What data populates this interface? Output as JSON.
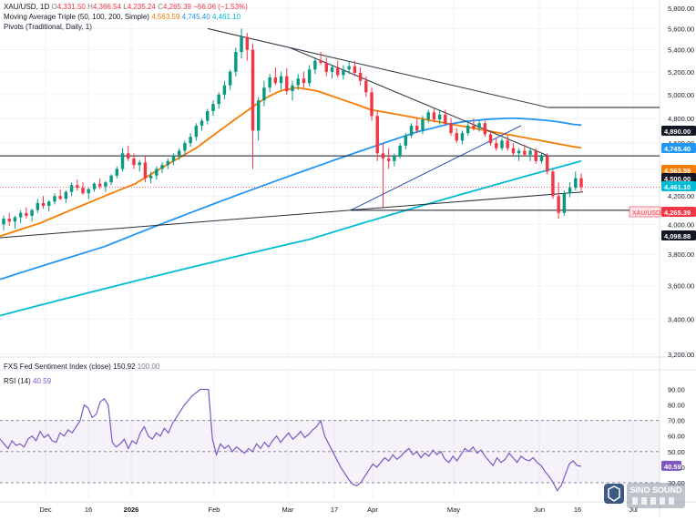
{
  "header": {
    "symbol": "XAU/USD, 1D",
    "ohlc": {
      "o_label": "O",
      "o": "4,331.50",
      "h_label": "H",
      "h": "4,366.54",
      "l_label": "L",
      "l": "4,235.24",
      "c_label": "C",
      "c": "4,265.39",
      "chg": "−66.06 (−1.53%)"
    },
    "ma_label": "Moving Average Triple (50, 100, 200, Simple)",
    "ma_values": [
      "4,563.59",
      "4,745.40",
      "4,461.10"
    ],
    "pivots_label": "Pivots (Traditional, Daily, 1)"
  },
  "sentiment_label": "FXS Fed Sentiment Index (close)",
  "sentiment_values": [
    "150.92",
    "100.00"
  ],
  "rsi_header": {
    "label": "RSI (14)",
    "value": "40.59"
  },
  "colors": {
    "up": "#089981",
    "down": "#f23645",
    "ma50": "#f57c00",
    "ma100": "#2196f3",
    "ma200": "#00bcd4",
    "rsi": "#7e57c2",
    "price_tag": "#f23645",
    "level_tag": "#131722"
  },
  "watermark": {
    "name": "SINO SOUND"
  },
  "chart_data": [
    {
      "type": "candlestick",
      "title": "XAU/USD, 1D",
      "ylim": [
        3200,
        5800
      ],
      "y_scale": "log",
      "yticks": [
        3200,
        3400,
        3600,
        3800,
        4000,
        4200,
        4400,
        4600,
        4800,
        5000,
        5200,
        5400,
        5600,
        5800
      ],
      "ytick_labels": [
        "3,200.00",
        "3,400.00",
        "3,600.00",
        "3,800.00",
        "4,000.00",
        "4,200.00",
        "4,400.00",
        "4,600.00",
        "4,800.00",
        "5,000.00",
        "5,200.00",
        "5,400.00",
        "5,600.00",
        "5,800.00"
      ],
      "xtick_labels": [
        "Dec",
        "16",
        "2026",
        "Feb",
        "Mar",
        "17",
        "Apr",
        "May",
        "Jun",
        "16",
        "Jul"
      ],
      "grid": true,
      "ohlc": [
        [
          4000,
          4060,
          3960,
          4040
        ],
        [
          4040,
          4080,
          3990,
          4020
        ],
        [
          4020,
          4060,
          3970,
          4050
        ],
        [
          4050,
          4100,
          4010,
          4080
        ],
        [
          4080,
          4120,
          4040,
          4060
        ],
        [
          4060,
          4110,
          4020,
          4100
        ],
        [
          4100,
          4180,
          4080,
          4150
        ],
        [
          4150,
          4200,
          4110,
          4130
        ],
        [
          4130,
          4170,
          4090,
          4160
        ],
        [
          4160,
          4220,
          4140,
          4200
        ],
        [
          4200,
          4250,
          4170,
          4180
        ],
        [
          4180,
          4240,
          4150,
          4230
        ],
        [
          4230,
          4300,
          4200,
          4280
        ],
        [
          4280,
          4320,
          4240,
          4260
        ],
        [
          4260,
          4300,
          4210,
          4220
        ],
        [
          4220,
          4260,
          4180,
          4250
        ],
        [
          4250,
          4300,
          4230,
          4290
        ],
        [
          4290,
          4330,
          4250,
          4270
        ],
        [
          4270,
          4310,
          4230,
          4300
        ],
        [
          4300,
          4360,
          4280,
          4350
        ],
        [
          4350,
          4420,
          4330,
          4400
        ],
        [
          4400,
          4560,
          4380,
          4520
        ],
        [
          4520,
          4580,
          4460,
          4480
        ],
        [
          4480,
          4520,
          4400,
          4430
        ],
        [
          4430,
          4470,
          4380,
          4450
        ],
        [
          4450,
          4500,
          4300,
          4330
        ],
        [
          4330,
          4380,
          4290,
          4350
        ],
        [
          4350,
          4420,
          4320,
          4400
        ],
        [
          4400,
          4450,
          4370,
          4430
        ],
        [
          4430,
          4480,
          4400,
          4460
        ],
        [
          4460,
          4520,
          4430,
          4500
        ],
        [
          4500,
          4560,
          4470,
          4540
        ],
        [
          4540,
          4620,
          4510,
          4600
        ],
        [
          4600,
          4680,
          4570,
          4650
        ],
        [
          4650,
          4760,
          4620,
          4740
        ],
        [
          4740,
          4800,
          4700,
          4780
        ],
        [
          4780,
          4880,
          4750,
          4860
        ],
        [
          4860,
          4950,
          4820,
          4920
        ],
        [
          4920,
          5020,
          4880,
          5000
        ],
        [
          5000,
          5120,
          4960,
          5080
        ],
        [
          5080,
          5220,
          5040,
          5200
        ],
        [
          5200,
          5420,
          5160,
          5380
        ],
        [
          5380,
          5600,
          5320,
          5520
        ],
        [
          5520,
          5560,
          5300,
          5400
        ],
        [
          5400,
          5460,
          4400,
          4700
        ],
        [
          4700,
          4980,
          4620,
          4950
        ],
        [
          4950,
          5120,
          4900,
          5060
        ],
        [
          5060,
          5180,
          5020,
          5150
        ],
        [
          5150,
          5240,
          5080,
          5100
        ],
        [
          5100,
          5200,
          5040,
          5160
        ],
        [
          5160,
          5230,
          5000,
          5030
        ],
        [
          5030,
          5120,
          4950,
          5080
        ],
        [
          5080,
          5180,
          5040,
          5140
        ],
        [
          5140,
          5200,
          5060,
          5100
        ],
        [
          5100,
          5260,
          5070,
          5220
        ],
        [
          5220,
          5330,
          5180,
          5300
        ],
        [
          5300,
          5380,
          5260,
          5280
        ],
        [
          5280,
          5330,
          5160,
          5200
        ],
        [
          5200,
          5260,
          5140,
          5240
        ],
        [
          5240,
          5300,
          5150,
          5170
        ],
        [
          5170,
          5260,
          5130,
          5220
        ],
        [
          5220,
          5290,
          5180,
          5250
        ],
        [
          5250,
          5300,
          5160,
          5190
        ],
        [
          5190,
          5240,
          5080,
          5120
        ],
        [
          5120,
          5160,
          4980,
          5020
        ],
        [
          5020,
          5060,
          4780,
          4820
        ],
        [
          4820,
          4860,
          4460,
          4520
        ],
        [
          4520,
          4600,
          4120,
          4480
        ],
        [
          4480,
          4560,
          4400,
          4460
        ],
        [
          4460,
          4520,
          4420,
          4500
        ],
        [
          4500,
          4600,
          4480,
          4580
        ],
        [
          4580,
          4680,
          4550,
          4660
        ],
        [
          4660,
          4760,
          4640,
          4740
        ],
        [
          4740,
          4800,
          4680,
          4700
        ],
        [
          4700,
          4820,
          4670,
          4790
        ],
        [
          4790,
          4870,
          4760,
          4850
        ],
        [
          4850,
          4880,
          4770,
          4790
        ],
        [
          4790,
          4860,
          4750,
          4830
        ],
        [
          4830,
          4870,
          4740,
          4760
        ],
        [
          4760,
          4800,
          4660,
          4680
        ],
        [
          4680,
          4720,
          4600,
          4620
        ],
        [
          4620,
          4700,
          4590,
          4680
        ],
        [
          4680,
          4760,
          4660,
          4740
        ],
        [
          4740,
          4800,
          4700,
          4720
        ],
        [
          4720,
          4780,
          4690,
          4760
        ],
        [
          4760,
          4780,
          4650,
          4670
        ],
        [
          4670,
          4700,
          4580,
          4600
        ],
        [
          4600,
          4640,
          4540,
          4560
        ],
        [
          4560,
          4640,
          4540,
          4620
        ],
        [
          4620,
          4660,
          4540,
          4560
        ],
        [
          4560,
          4600,
          4500,
          4520
        ],
        [
          4520,
          4560,
          4460,
          4540
        ],
        [
          4540,
          4590,
          4500,
          4510
        ],
        [
          4510,
          4560,
          4460,
          4540
        ],
        [
          4540,
          4560,
          4440,
          4460
        ],
        [
          4460,
          4520,
          4440,
          4500
        ],
        [
          4500,
          4520,
          4360,
          4380
        ],
        [
          4380,
          4400,
          4180,
          4200
        ],
        [
          4200,
          4300,
          4040,
          4080
        ],
        [
          4080,
          4240,
          4060,
          4220
        ],
        [
          4220,
          4300,
          4190,
          4260
        ],
        [
          4260,
          4380,
          4240,
          4331.5
        ],
        [
          4331.5,
          4366.54,
          4235.24,
          4265.39
        ]
      ],
      "series": [
        {
          "name": "MA 50",
          "values": [
            3920,
            3935,
            3950,
            3965,
            3980,
            3995,
            4010,
            4030,
            4050,
            4070,
            4090,
            4110,
            4130,
            4150,
            4170,
            4190,
            4210,
            4230,
            4250,
            4270,
            4290,
            4320,
            4350,
            4380,
            4410,
            4440,
            4470,
            4500,
            4530,
            4560,
            4600,
            4640,
            4680,
            4720,
            4760,
            4800,
            4840,
            4880,
            4920,
            4960,
            4990,
            5020,
            5040,
            5050,
            5060,
            5050,
            5040,
            5030,
            5010,
            4990,
            4970,
            4950,
            4930,
            4910,
            4890,
            4870,
            4860,
            4850,
            4840,
            4830,
            4820,
            4810,
            4800,
            4790,
            4780,
            4770,
            4760,
            4750,
            4740,
            4730,
            4720,
            4710,
            4700,
            4690,
            4680,
            4670,
            4660,
            4650,
            4640,
            4630,
            4620,
            4610,
            4600,
            4590,
            4580,
            4570,
            4564
          ]
        },
        {
          "name": "MA 100",
          "values": [
            3640,
            3655,
            3670,
            3685,
            3700,
            3715,
            3730,
            3745,
            3760,
            3775,
            3790,
            3805,
            3820,
            3835,
            3850,
            3870,
            3890,
            3910,
            3930,
            3950,
            3970,
            3990,
            4010,
            4030,
            4050,
            4070,
            4090,
            4110,
            4130,
            4150,
            4170,
            4190,
            4210,
            4230,
            4250,
            4270,
            4290,
            4310,
            4330,
            4350,
            4370,
            4390,
            4410,
            4430,
            4450,
            4470,
            4490,
            4510,
            4530,
            4550,
            4570,
            4590,
            4610,
            4630,
            4650,
            4670,
            4690,
            4705,
            4720,
            4735,
            4750,
            4760,
            4770,
            4778,
            4784,
            4790,
            4794,
            4797,
            4800,
            4800,
            4798,
            4795,
            4790,
            4785,
            4778,
            4770,
            4760,
            4750,
            4745
          ]
        },
        {
          "name": "MA 200",
          "values": [
            3420,
            3435,
            3450,
            3465,
            3480,
            3495,
            3510,
            3525,
            3540,
            3555,
            3570,
            3585,
            3600,
            3615,
            3630,
            3645,
            3660,
            3675,
            3690,
            3705,
            3720,
            3735,
            3750,
            3765,
            3780,
            3795,
            3810,
            3825,
            3840,
            3855,
            3870,
            3885,
            3900,
            3920,
            3940,
            3960,
            3980,
            4000,
            4020,
            4040,
            4060,
            4080,
            4100,
            4120,
            4140,
            4160,
            4180,
            4200,
            4220,
            4240,
            4260,
            4280,
            4300,
            4320,
            4340,
            4360,
            4380,
            4400,
            4420,
            4440,
            4461
          ]
        }
      ],
      "levels": [
        4890.0,
        4500.0,
        4098.88
      ],
      "last_price": 4265.39,
      "tags": [
        {
          "label": "4,890.00",
          "value": 4890,
          "kind": "level"
        },
        {
          "label": "4,745.40",
          "value": 4745.4,
          "kind": "ma100"
        },
        {
          "label": "4,563.59",
          "value": 4563.59,
          "kind": "ma50"
        },
        {
          "label": "4,500.00",
          "value": 4500,
          "kind": "level"
        },
        {
          "label": "4,461.10",
          "value": 4461.1,
          "kind": "ma200"
        },
        {
          "label": "4,265.39",
          "value": 4265.39,
          "kind": "price",
          "name": "XAU/USD"
        },
        {
          "label": "4,098.88",
          "value": 4098.88,
          "kind": "level"
        }
      ]
    },
    {
      "type": "line",
      "title": "RSI (14)",
      "ylim": [
        20,
        95
      ],
      "yticks": [
        30,
        40,
        50,
        60,
        70,
        80,
        90
      ],
      "ytick_labels": [
        "30.00",
        "40.00",
        "50.00",
        "60.00",
        "70.00",
        "80.00",
        "90.00"
      ],
      "bands": [
        30,
        50,
        70
      ],
      "grid": true,
      "series": [
        {
          "name": "RSI (14)",
          "values": [
            58,
            55,
            52,
            57,
            54,
            55,
            53,
            58,
            60,
            57,
            63,
            59,
            61,
            57,
            56,
            62,
            60,
            64,
            62,
            66,
            70,
            80,
            78,
            72,
            74,
            82,
            84,
            80,
            56,
            53,
            55,
            58,
            52,
            57,
            55,
            62,
            66,
            60,
            58,
            62,
            60,
            65,
            62,
            68,
            72,
            76,
            80,
            83,
            86,
            88,
            90,
            90,
            90,
            58,
            48,
            55,
            52,
            54,
            50,
            53,
            51,
            49,
            52,
            50,
            55,
            52,
            56,
            53,
            57,
            60,
            56,
            59,
            62,
            58,
            60,
            63,
            59,
            61,
            64,
            66,
            70,
            60,
            55,
            50,
            45,
            40,
            36,
            32,
            29,
            28,
            30,
            34,
            38,
            42,
            40,
            43,
            46,
            44,
            48,
            45,
            47,
            50,
            52,
            48,
            50,
            46,
            49,
            47,
            51,
            48,
            50,
            45,
            43,
            47,
            44,
            48,
            52,
            50,
            53,
            49,
            51,
            47,
            44,
            41,
            46,
            43,
            45,
            49,
            46,
            43,
            47,
            45,
            44,
            46,
            43,
            41,
            37,
            34,
            30,
            25,
            28,
            35,
            42,
            44,
            41,
            40.59
          ]
        }
      ],
      "last_value": 40.59
    }
  ]
}
